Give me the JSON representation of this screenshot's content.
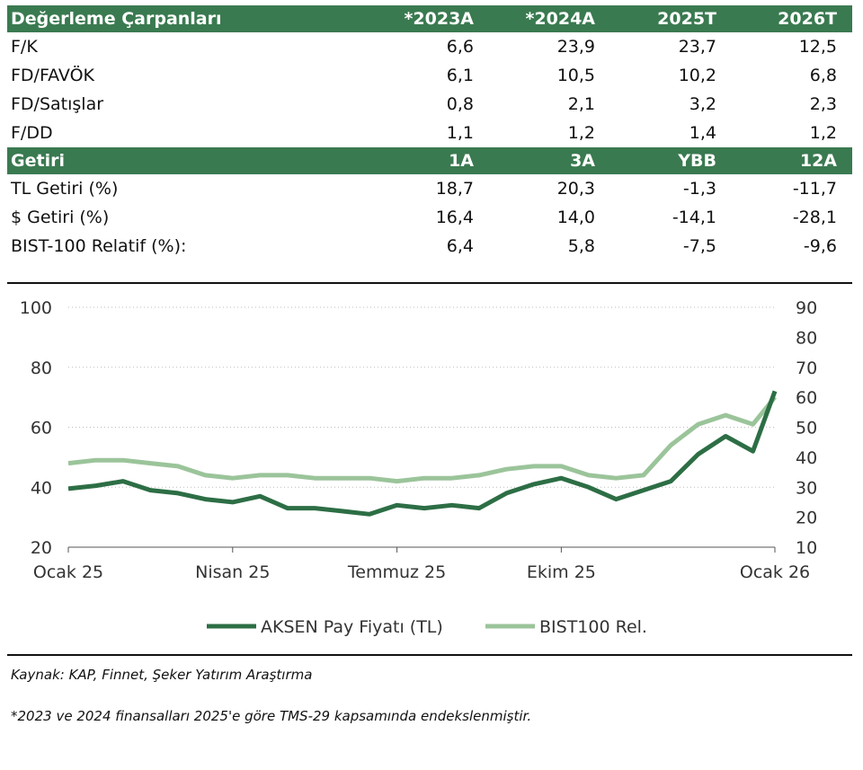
{
  "table": {
    "valuation_header": [
      "Değerleme Çarpanları",
      "*2023A",
      "*2024A",
      "2025T",
      "2026T"
    ],
    "valuation_rows": [
      [
        "F/K",
        "6,6",
        "23,9",
        "23,7",
        "12,5"
      ],
      [
        "FD/FAVÖK",
        "6,1",
        "10,5",
        "10,2",
        "6,8"
      ],
      [
        "FD/Satışlar",
        "0,8",
        "2,1",
        "3,2",
        "2,3"
      ],
      [
        "F/DD",
        "1,1",
        "1,2",
        "1,4",
        "1,2"
      ]
    ],
    "return_header": [
      "Getiri",
      "1A",
      "3A",
      "YBB",
      "12A"
    ],
    "return_rows": [
      [
        "TL Getiri (%)",
        "18,7",
        "20,3",
        "-1,3",
        "-11,7"
      ],
      [
        "$ Getiri (%)",
        "16,4",
        "14,0",
        "-14,1",
        "-28,1"
      ],
      [
        "BIST-100 Relatif (%):",
        "6,4",
        "5,8",
        "-7,5",
        "-9,6"
      ]
    ],
    "header_color": "#3a7a50"
  },
  "chart_data": {
    "type": "line",
    "x_tick_labels": [
      "Ocak 25",
      "Nisan 25",
      "Temmuz 25",
      "Ekim 25",
      "Ocak 26"
    ],
    "y_left": {
      "ticks": [
        "20",
        "40",
        "60",
        "80",
        "100"
      ],
      "range": [
        20,
        100
      ]
    },
    "y_right": {
      "ticks": [
        "10",
        "20",
        "30",
        "40",
        "50",
        "60",
        "70",
        "80",
        "90"
      ],
      "range": [
        10,
        90
      ]
    },
    "grid": "dotted-horizontal",
    "series": [
      {
        "name": "AKSEN Pay Fiyatı (TL)",
        "axis": "left",
        "color": "#2d6e45",
        "x": [
          0,
          0.5,
          1,
          1.5,
          2,
          2.5,
          3,
          3.5,
          4,
          4.5,
          5,
          5.5,
          6,
          6.5,
          7,
          7.5,
          8,
          8.5,
          9,
          9.5,
          10,
          10.5,
          11,
          11.5,
          12,
          12.5,
          12.9
        ],
        "values": [
          39.5,
          40.5,
          42,
          39,
          38,
          36,
          35,
          37,
          33,
          33,
          32,
          31,
          34,
          33,
          34,
          33,
          38,
          41,
          43,
          40,
          36,
          39,
          42,
          51,
          57,
          52,
          72
        ]
      },
      {
        "name": "BIST100 Rel.",
        "axis": "right",
        "color": "#9bc49a",
        "x": [
          0,
          0.5,
          1,
          1.5,
          2,
          2.5,
          3,
          3.5,
          4,
          4.5,
          5,
          5.5,
          6,
          6.5,
          7,
          7.5,
          8,
          8.5,
          9,
          9.5,
          10,
          10.5,
          11,
          11.5,
          12,
          12.5,
          12.9
        ],
        "values": [
          38,
          39,
          39,
          38,
          37,
          34,
          33,
          34,
          34,
          33,
          33,
          33,
          32,
          33,
          33,
          34,
          36,
          37,
          37,
          34,
          33,
          34,
          44,
          51,
          54,
          51,
          60
        ]
      }
    ]
  },
  "source_text": "Kaynak: KAP, Finnet, Şeker Yatırım Araştırma",
  "note_text": "*2023 ve 2024 finansalları 2025'e göre TMS-29 kapsamında endekslenmiştir."
}
